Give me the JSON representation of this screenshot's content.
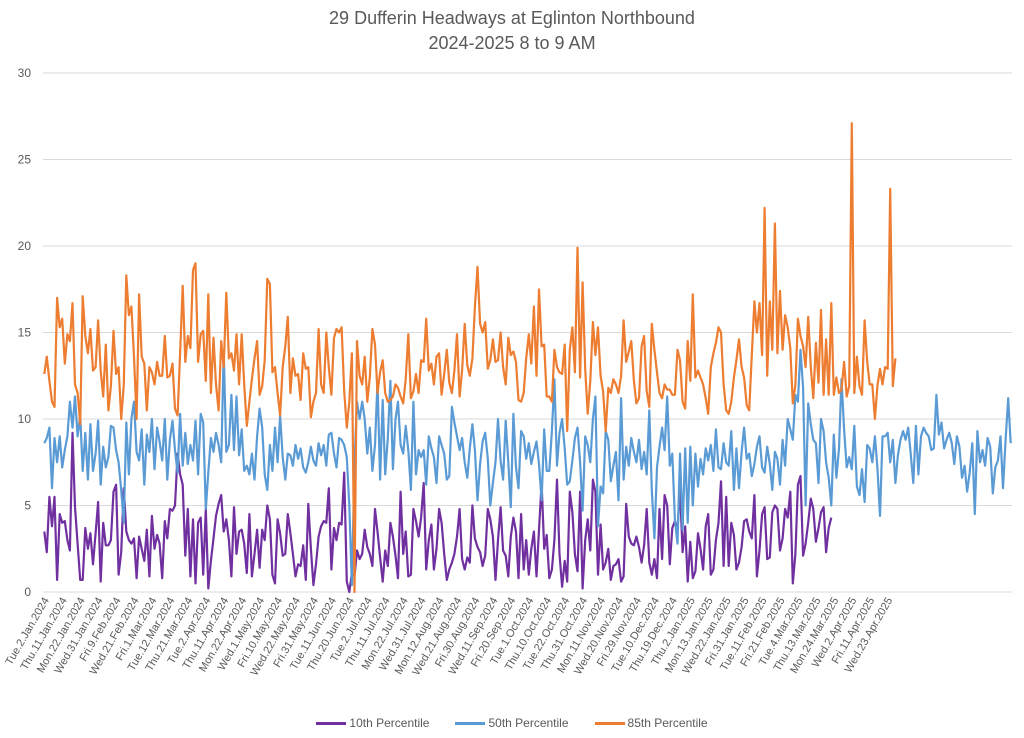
{
  "chart_data": {
    "type": "line",
    "title": "29 Dufferin Headways at Eglinton Northbound",
    "subtitle": "2024-2025 8 to 9 AM",
    "xlabel": "",
    "ylabel": "",
    "ylim": [
      0,
      30
    ],
    "yticks": [
      0,
      5,
      10,
      15,
      20,
      25,
      30
    ],
    "grid": true,
    "legend_position": "bottom",
    "x_tick_labels": [
      "Tue.2.Jan.2024",
      "Thu.11.Jan.2024",
      "Mon.22.Jan.2024",
      "Wed.31.Jan.2024",
      "Fri.9.Feb.2024",
      "Wed.21.Feb.2024",
      "Fri.1.Mar.2024",
      "Tue.12.Mar.2024",
      "Thu.21.Mar.2024",
      "Tue.2.Apr.2024",
      "Thu.11.Apr.2024",
      "Mon.22.Apr.2024",
      "Wed.1.May.2024",
      "Fri.10.May.2024",
      "Wed.22.May.2024",
      "Fri.31.May.2024",
      "Tue.11.Jun.2024",
      "Thu.20.Jun.2024",
      "Tue.2.Jul.2024",
      "Thu.11.Jul.2024",
      "Mon.22.Jul.2024",
      "Wed.31.Jul.2024",
      "Mon.12.Aug.2024",
      "Wed.21.Aug.2024",
      "Fri.30.Aug.2024",
      "Wed.11.Sep.2024",
      "Fri.20.Sep.2024",
      "Tue.1.Oct.2024",
      "Thu.10.Oct.2024",
      "Tue.22.Oct.2024",
      "Thu.31.Oct.2024",
      "Mon.11.Nov.2024",
      "Wed.20.Nov.2024",
      "Fri.29.Nov.2024",
      "Tue.10.Dec.2024",
      "Thu.19.Dec.2024",
      "Thu.2.Jan.2025",
      "Mon.13.Jan.2025",
      "Wed.22.Jan.2025",
      "Fri.31.Jan.2025",
      "Tue.11.Feb.2025",
      "Fri.21.Feb.2025",
      "Tue.4.Mar.2025",
      "Thu.13.Mar.2025",
      "Mon.24.Mar.2025",
      "Wed.2.Apr.2025",
      "Fri.11.Apr.2025",
      "Wed.23.Apr.2025"
    ],
    "points_per_tick": 7,
    "series": [
      {
        "name": "10th Percentile",
        "color": "#7030a0",
        "values": [
          3.5,
          2.3,
          5.5,
          3.8,
          5.5,
          0.7,
          4.5,
          4.0,
          4.1,
          3.0,
          2.4,
          9.2,
          4.9,
          2.8,
          0.7,
          0.7,
          3.7,
          2.5,
          3.4,
          1.6,
          3.4,
          5.2,
          0.6,
          4.0,
          2.7,
          2.7,
          3.0,
          5.8,
          6.2,
          1.0,
          2.3,
          6.0,
          3.5,
          3.0,
          2.8,
          3.1,
          0.8,
          3.2,
          2.5,
          1.8,
          3.6,
          0.9,
          4.4,
          2.5,
          3.3,
          2.8,
          0.8,
          4.1,
          3.1,
          4.8,
          4.7,
          5.0,
          8.0,
          6.8,
          6.2,
          2.1,
          4.8,
          0.9,
          4.2,
          0.5,
          4.0,
          4.3,
          1.0,
          4.8,
          0.2,
          1.8,
          3.1,
          4.4,
          5.1,
          5.6,
          3.5,
          4.2,
          3.0,
          0.9,
          4.9,
          2.2,
          3.5,
          3.6,
          2.8,
          1.1,
          4.5,
          0.9,
          2.2,
          3.6,
          1.4,
          3.6,
          3.0,
          5.0,
          4.2,
          1.0,
          0.5,
          4.2,
          3.4,
          2.1,
          2.2,
          4.5,
          3.4,
          2.2,
          0.9,
          1.6,
          1.5,
          2.7,
          0.7,
          5.1,
          2.5,
          0.4,
          1.6,
          3.2,
          3.8,
          4.1,
          4.0,
          6.0,
          1.3,
          3.7,
          3.0,
          4.0,
          3.9,
          6.9,
          0.6,
          0.0,
          1.1,
          0.9,
          2.4,
          1.9,
          2.2,
          3.6,
          2.6,
          2.2,
          1.5,
          4.8,
          3.5,
          2.0,
          0.6,
          2.4,
          1.5,
          4.0,
          3.2,
          2.1,
          0.8,
          5.8,
          2.2,
          3.5,
          0.9,
          1.0,
          4.8,
          4.1,
          3.2,
          4.3,
          6.3,
          1.3,
          3.0,
          3.9,
          1.3,
          2.5,
          4.8,
          4.0,
          2.2,
          0.7,
          1.3,
          1.7,
          2.2,
          3.2,
          4.8,
          1.9,
          1.3,
          2.0,
          1.7,
          5.0,
          3.1,
          2.6,
          2.3,
          1.5,
          2.1,
          4.8,
          4.2,
          3.2,
          0.7,
          3.0,
          4.9,
          2.4,
          2.1,
          0.9,
          3.2,
          4.3,
          3.5,
          0.8,
          4.5,
          1.3,
          3.0,
          1.0,
          2.5,
          3.5,
          0.9,
          3.6,
          6.3,
          2.5,
          3.3,
          0.8,
          1.3,
          3.0,
          6.5,
          2.2,
          0.3,
          1.8,
          0.6,
          5.8,
          4.6,
          2.2,
          1.2,
          5.8,
          0.2,
          3.0,
          4.2,
          2.4,
          6.5,
          5.8,
          1.0,
          3.9,
          1.3,
          1.7,
          2.5,
          0.7,
          1.5,
          1.6,
          1.9,
          0.6,
          0.9,
          5.1,
          3.2,
          2.8,
          2.7,
          3.2,
          2.6,
          1.7,
          2.7,
          4.8,
          1.7,
          1.0,
          1.9,
          0.8,
          4.8,
          1.9,
          5.6,
          5.0,
          1.6,
          3.7,
          4.1,
          3.6,
          6.0,
          2.3,
          3.8,
          0.6,
          2.9,
          0.8,
          1.2,
          3.4,
          2.5,
          1.3,
          3.8,
          4.5,
          1.0,
          1.3,
          3.0,
          4.0,
          6.4,
          1.5,
          5.5,
          1.5,
          4.0,
          3.3,
          1.3,
          1.7,
          2.6,
          4.1,
          4.2,
          3.5,
          3.1,
          5.6,
          0.9,
          2.4,
          4.5,
          4.9,
          1.9,
          2.0,
          4.6,
          5.0,
          4.8,
          2.4,
          3.1,
          4.8,
          4.3,
          5.8,
          0.5,
          2.2,
          6.2,
          6.7,
          2.1,
          2.8,
          4.0,
          5.4,
          4.8,
          2.9,
          3.7,
          4.6,
          4.9,
          2.3,
          3.7,
          4.3
        ]
      },
      {
        "name": "50th Percentile",
        "color": "#5b9bd5",
        "values": [
          8.6,
          8.9,
          9.5,
          6.0,
          8.9,
          7.5,
          9.0,
          7.2,
          8.2,
          9.0,
          11.0,
          9.5,
          11.3,
          9.0,
          10.2,
          7.0,
          9.2,
          6.5,
          9.7,
          7.0,
          8.0,
          9.9,
          6.2,
          8.4,
          7.2,
          7.8,
          9.6,
          9.5,
          8.2,
          7.5,
          5.9,
          4.0,
          9.8,
          6.8,
          10.0,
          11.0,
          8.1,
          7.6,
          9.4,
          6.2,
          9.1,
          8.1,
          10.0,
          7.1,
          9.5,
          8.7,
          7.6,
          10.0,
          6.5,
          8.8,
          9.9,
          8.2,
          6.9,
          10.3,
          7.3,
          9.2,
          7.4,
          8.5,
          7.6,
          9.9,
          6.8,
          10.3,
          9.8,
          4.8,
          6.9,
          8.9,
          8.1,
          9.2,
          8.5,
          7.5,
          13.9,
          8.1,
          8.5,
          11.4,
          8.2,
          11.3,
          7.9,
          9.4,
          7.0,
          7.3,
          6.8,
          8.0,
          6.5,
          9.0,
          10.6,
          9.5,
          6.8,
          5.9,
          8.5,
          7.0,
          9.5,
          7.5,
          10.2,
          7.8,
          6.5,
          8.0,
          7.9,
          7.3,
          8.5,
          7.7,
          8.3,
          7.2,
          6.9,
          7.5,
          8.4,
          7.6,
          7.3,
          8.6,
          7.9,
          8.5,
          7.3,
          9.1,
          9.2,
          8.0,
          7.2,
          8.9,
          8.8,
          8.5,
          7.8,
          5.0,
          0.4,
          7.5,
          11.0,
          10.0,
          11.0,
          10.0,
          8.0,
          9.5,
          7.0,
          8.5,
          12.2,
          6.5,
          11.1,
          6.8,
          8.9,
          12.2,
          7.1,
          10.0,
          11.0,
          8.5,
          8.0,
          9.6,
          8.2,
          5.9,
          11.0,
          6.8,
          8.2,
          7.8,
          8.2,
          6.2,
          9.0,
          8.3,
          7.8,
          6.3,
          9.0,
          8.5,
          8.0,
          6.5,
          6.7,
          10.7,
          9.8,
          9.0,
          8.2,
          8.9,
          7.5,
          6.6,
          8.3,
          9.7,
          8.2,
          5.3,
          7.4,
          8.7,
          9.2,
          7.7,
          5.0,
          6.3,
          7.5,
          10.0,
          7.6,
          6.5,
          9.9,
          7.5,
          4.9,
          10.3,
          7.2,
          6.0,
          9.3,
          9.0,
          7.7,
          8.6,
          7.4,
          8.1,
          8.7,
          7.4,
          5.3,
          9.4,
          7.0,
          7.0,
          9.3,
          12.3,
          7.3,
          9.2,
          10.0,
          8.3,
          6.2,
          6.4,
          7.6,
          8.9,
          9.5,
          7.5,
          4.7,
          9.0,
          8.5,
          7.5,
          10.0,
          11.3,
          3.8,
          6.1,
          5.7,
          9.3,
          8.8,
          6.4,
          7.3,
          8.1,
          5.3,
          11.2,
          6.5,
          8.4,
          7.3,
          8.9,
          8.1,
          7.5,
          8.8,
          7.1,
          8.1,
          6.8,
          10.5,
          5.9,
          3.1,
          7.2,
          8.4,
          9.5,
          8.2,
          11.3,
          7.3,
          8.0,
          4.2,
          2.8,
          8.0,
          3.6,
          8.3,
          4.0,
          8.4,
          5.0,
          8.0,
          6.1,
          7.7,
          6.8,
          8.3,
          7.6,
          8.5,
          7.0,
          9.4,
          7.2,
          7.1,
          8.6,
          7.5,
          7.3,
          9.3,
          5.9,
          8.3,
          6.0,
          8.1,
          9.5,
          7.7,
          8.0,
          6.7,
          7.4,
          8.4,
          9.0,
          7.2,
          6.9,
          8.4,
          7.4,
          5.9,
          8.1,
          7.7,
          6.2,
          8.8,
          7.3,
          10.0,
          9.4,
          8.8,
          11.4,
          11.0,
          14.0,
          11.8,
          5.0,
          10.9,
          9.7,
          8.8,
          8.6,
          6.3,
          10.0,
          9.3,
          7.5,
          6.6,
          5.0,
          9.1,
          6.6,
          8.3,
          12.3,
          9.4,
          7.2,
          7.8,
          7.1,
          9.6,
          6.1,
          5.6,
          7.1,
          5.2,
          8.5,
          8.3,
          7.5,
          9.0,
          7.2,
          4.4,
          9.0,
          9.0,
          9.2,
          7.5,
          8.8,
          6.3,
          7.9,
          8.8,
          9.3,
          8.8,
          9.5,
          8.0,
          6.3,
          9.6,
          6.8,
          9.0,
          9.5,
          9.2,
          9.0,
          8.2,
          8.3,
          11.4,
          9.1,
          9.8,
          8.3,
          8.8,
          9.2,
          8.6,
          7.4,
          9.0,
          8.4,
          6.6,
          7.3,
          5.8,
          6.9,
          8.6,
          4.5,
          9.3,
          7.5,
          8.2,
          7.3,
          8.9,
          8.4,
          5.7,
          7.2,
          7.6,
          9.0,
          6.0,
          8.8,
          11.2,
          8.6
        ]
      },
      {
        "name": "85th Percentile",
        "color": "#ed7d31",
        "values": [
          12.6,
          13.6,
          12.2,
          11.0,
          10.7,
          17.0,
          15.3,
          15.8,
          13.2,
          14.9,
          14.5,
          16.7,
          12.0,
          11.5,
          9.7,
          17.1,
          14.8,
          13.8,
          15.2,
          12.8,
          13.0,
          15.7,
          12.8,
          11.3,
          14.3,
          10.5,
          11.9,
          15.1,
          12.6,
          13.0,
          10.0,
          12.0,
          18.3,
          16.0,
          16.5,
          13.6,
          10.0,
          17.2,
          13.6,
          13.2,
          10.5,
          13.0,
          12.7,
          12.0,
          13.3,
          12.5,
          12.5,
          14.8,
          12.4,
          12.5,
          13.2,
          10.6,
          10.2,
          13.8,
          17.7,
          13.3,
          14.8,
          14.1,
          18.6,
          19.0,
          13.3,
          14.9,
          15.1,
          12.2,
          17.2,
          11.5,
          14.7,
          12.0,
          10.5,
          14.5,
          13.0,
          17.3,
          13.5,
          13.8,
          12.8,
          14.9,
          12.0,
          14.9,
          12.0,
          9.6,
          11.0,
          12.3,
          13.5,
          14.5,
          11.4,
          11.9,
          13.4,
          18.1,
          17.8,
          12.7,
          13.0,
          11.5,
          10.2,
          13.0,
          14.2,
          15.9,
          11.5,
          13.5,
          12.5,
          12.6,
          11.1,
          13.8,
          12.9,
          13.0,
          10.1,
          11.0,
          11.5,
          15.2,
          12.0,
          11.5,
          15.0,
          13.0,
          11.4,
          14.7,
          15.2,
          15.0,
          15.3,
          11.6,
          9.5,
          11.0,
          13.8,
          0.0,
          14.5,
          12.5,
          12.0,
          13.6,
          11.0,
          12.4,
          15.2,
          14.3,
          11.5,
          12.7,
          13.4,
          11.5,
          11.0,
          11.1,
          11.3,
          12.0,
          11.8,
          11.3,
          10.9,
          12.3,
          14.9,
          11.2,
          11.6,
          12.6,
          11.5,
          13.4,
          13.3,
          15.8,
          12.8,
          13.2,
          12.0,
          13.6,
          13.8,
          11.4,
          12.6,
          14.0,
          12.1,
          11.5,
          12.8,
          14.9,
          11.3,
          12.8,
          15.5,
          13.1,
          12.5,
          13.5,
          16.5,
          18.8,
          15.5,
          15.0,
          15.6,
          12.9,
          13.4,
          14.6,
          13.3,
          13.4,
          15.0,
          13.0,
          12.0,
          14.7,
          13.7,
          13.9,
          13.3,
          11.1,
          11.0,
          11.5,
          13.5,
          14.9,
          13.2,
          16.5,
          12.5,
          17.5,
          14.2,
          14.3,
          11.3,
          11.3,
          11.0,
          14.0,
          13.0,
          12.7,
          12.6,
          14.3,
          9.3,
          14.0,
          15.3,
          12.7,
          19.9,
          12.4,
          17.9,
          12.9,
          10.3,
          12.2,
          15.6,
          13.7,
          15.3,
          12.5,
          11.6,
          9.3,
          11.8,
          11.5,
          12.3,
          12.0,
          11.5,
          12.5,
          15.7,
          13.3,
          13.9,
          14.5,
          12.2,
          10.9,
          11.2,
          14.2,
          14.8,
          11.6,
          10.7,
          15.5,
          14.0,
          12.7,
          11.5,
          11.2,
          12.0,
          11.7,
          11.7,
          11.4,
          11.4,
          14.0,
          13.4,
          11.0,
          10.6,
          14.5,
          12.2,
          17.2,
          12.4,
          12.8,
          12.4,
          12.0,
          11.2,
          10.3,
          13.0,
          13.8,
          14.4,
          15.3,
          15.0,
          12.0,
          10.5,
          10.3,
          11.0,
          12.4,
          13.4,
          14.6,
          13.0,
          12.4,
          10.8,
          10.5,
          13.7,
          16.8,
          15.0,
          16.7,
          13.7,
          22.2,
          12.5,
          16.8,
          14.0,
          21.3,
          13.8,
          17.4,
          14.0,
          16.0,
          15.3,
          14.1,
          10.9,
          12.0,
          15.8,
          14.8,
          14.2,
          13.0,
          15.9,
          13.0,
          11.2,
          14.4,
          12.1,
          16.3,
          11.4,
          14.6,
          11.4,
          16.7,
          11.4,
          12.4,
          11.5,
          11.7,
          13.3,
          11.3,
          11.9,
          27.1,
          11.5,
          13.6,
          11.9,
          11.4,
          15.7,
          13.3,
          12.0,
          12.0,
          10.0,
          11.9,
          12.9,
          12.0,
          13.0,
          12.9,
          23.3,
          11.9,
          13.5
        ]
      }
    ]
  },
  "legend": {
    "items": [
      "10th Percentile",
      "50th Percentile",
      "85th Percentile"
    ]
  }
}
